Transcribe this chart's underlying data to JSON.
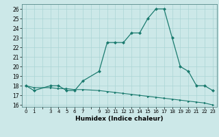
{
  "x": [
    0,
    1,
    3,
    4,
    5,
    6,
    7,
    9,
    10,
    11,
    12,
    13,
    14,
    15,
    16,
    17,
    18,
    19,
    20,
    21,
    22,
    23
  ],
  "y_humidex": [
    18,
    17.5,
    18,
    18,
    17.5,
    17.5,
    18.5,
    19.5,
    22.5,
    22.5,
    22.5,
    23.5,
    23.5,
    25,
    26,
    26,
    23,
    20,
    19.5,
    18,
    18,
    17.5
  ],
  "y_baseline": [
    18,
    17.8,
    17.8,
    17.7,
    17.7,
    17.6,
    17.6,
    17.5,
    17.4,
    17.3,
    17.2,
    17.1,
    17.0,
    16.9,
    16.8,
    16.7,
    16.6,
    16.5,
    16.4,
    16.3,
    16.2,
    16.0
  ],
  "line_color": "#1a7a6e",
  "bg_color": "#cce8e8",
  "grid_color": "#aad4d4",
  "xlabel": "Humidex (Indice chaleur)",
  "xlim": [
    -0.5,
    23.5
  ],
  "ylim": [
    15.8,
    26.5
  ],
  "ytick_vals": [
    16,
    17,
    18,
    19,
    20,
    21,
    22,
    23,
    24,
    25,
    26
  ]
}
